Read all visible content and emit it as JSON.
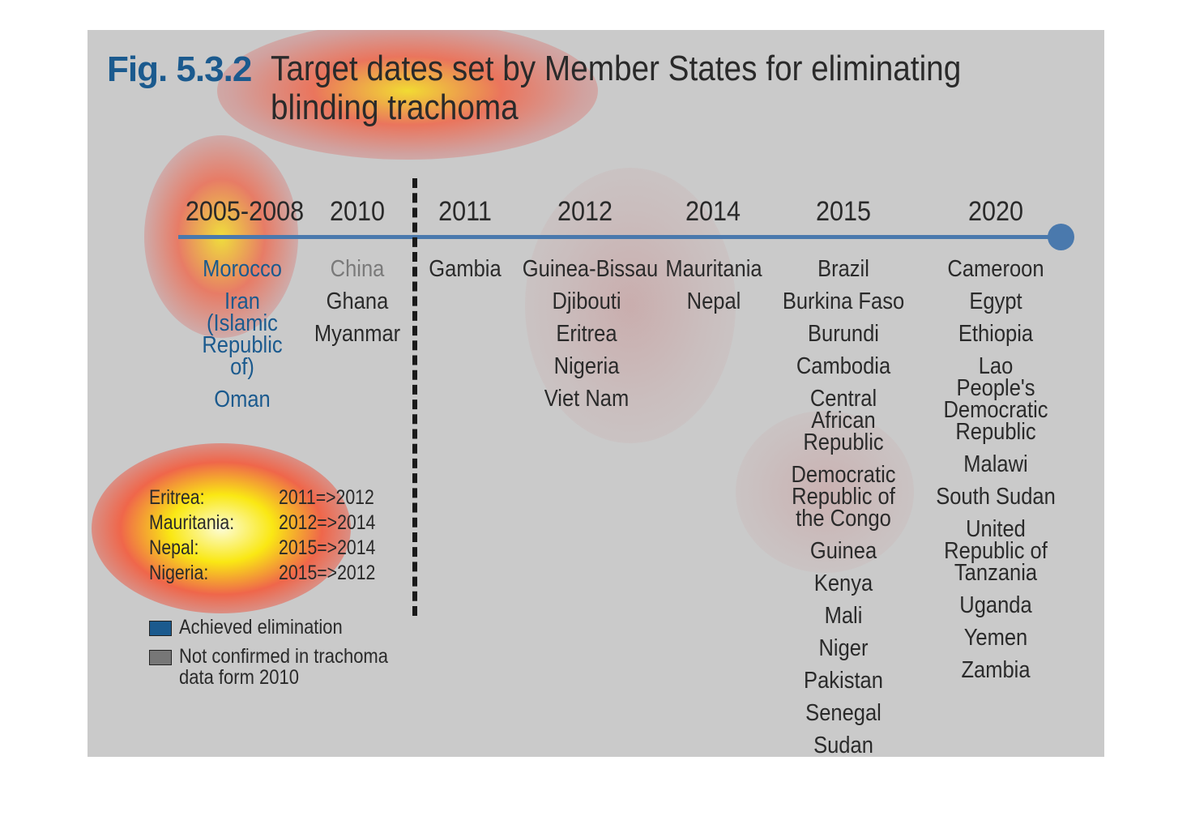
{
  "figure": {
    "number": "Fig. 5.3.2",
    "title_lines": [
      "Target dates set by Member States for eliminating",
      "blinding trachoma"
    ]
  },
  "timeline": {
    "columns": [
      {
        "year": "2005-2008",
        "items": [
          {
            "label": "Morocco",
            "status": "achieved"
          },
          {
            "label": "Iran (Islamic Republic of)",
            "status": "achieved"
          },
          {
            "label": "Oman",
            "status": "achieved"
          }
        ]
      },
      {
        "year": "2010",
        "items": [
          {
            "label": "China",
            "status": "unconfirmed"
          },
          {
            "label": "Ghana",
            "status": "normal"
          },
          {
            "label": "Myanmar",
            "status": "normal"
          }
        ]
      },
      {
        "year": "2011",
        "items": [
          {
            "label": "Gambia",
            "status": "normal"
          }
        ]
      },
      {
        "year": "2012",
        "items": [
          {
            "label": "Guinea-Bissau",
            "status": "normal"
          },
          {
            "label": "Djibouti",
            "status": "normal"
          },
          {
            "label": "Eritrea",
            "status": "normal"
          },
          {
            "label": "Nigeria",
            "status": "normal"
          },
          {
            "label": "Viet Nam",
            "status": "normal"
          }
        ]
      },
      {
        "year": "2014",
        "items": [
          {
            "label": "Mauritania",
            "status": "normal"
          },
          {
            "label": "Nepal",
            "status": "normal"
          }
        ]
      },
      {
        "year": "2015",
        "items": [
          {
            "label": "Brazil",
            "status": "normal"
          },
          {
            "label": "Burkina Faso",
            "status": "normal"
          },
          {
            "label": "Burundi",
            "status": "normal"
          },
          {
            "label": "Cambodia",
            "status": "normal"
          },
          {
            "label": "Central African Republic",
            "status": "normal"
          },
          {
            "label": "Democratic Republic of the Congo",
            "status": "normal"
          },
          {
            "label": "Guinea",
            "status": "normal"
          },
          {
            "label": "Kenya",
            "status": "normal"
          },
          {
            "label": "Mali",
            "status": "normal"
          },
          {
            "label": "Niger",
            "status": "normal"
          },
          {
            "label": "Pakistan",
            "status": "normal"
          },
          {
            "label": "Senegal",
            "status": "normal"
          },
          {
            "label": "Sudan",
            "status": "normal"
          }
        ]
      },
      {
        "year": "2020",
        "items": [
          {
            "label": "Cameroon",
            "status": "normal"
          },
          {
            "label": "Egypt",
            "status": "normal"
          },
          {
            "label": "Ethiopia",
            "status": "normal"
          },
          {
            "label": "Lao People's Democratic Republic",
            "status": "normal"
          },
          {
            "label": "Malawi",
            "status": "normal"
          },
          {
            "label": "South Sudan",
            "status": "normal"
          },
          {
            "label": "United Republic of Tanzania",
            "status": "normal"
          },
          {
            "label": "Uganda",
            "status": "normal"
          },
          {
            "label": "Yemen",
            "status": "normal"
          },
          {
            "label": "Zambia",
            "status": "normal"
          }
        ]
      }
    ]
  },
  "changes": [
    {
      "country": "Eritrea:",
      "change": "2011=>2012"
    },
    {
      "country": "Mauritania:",
      "change": "2012=>2014"
    },
    {
      "country": "Nepal:",
      "change": "2015=>2014"
    },
    {
      "country": "Nigeria:",
      "change": "2015=>2012"
    }
  ],
  "legend": {
    "achieved": "Achieved elimination",
    "unconfirmed_line1": "Not confirmed in trachoma",
    "unconfirmed_line2": "data form 2010"
  },
  "colors": {
    "achieved": "#1b5a8e",
    "unconfirmed": "#7a7a7a",
    "axis": "#4a79ad",
    "panel_background": "#cacaca"
  }
}
